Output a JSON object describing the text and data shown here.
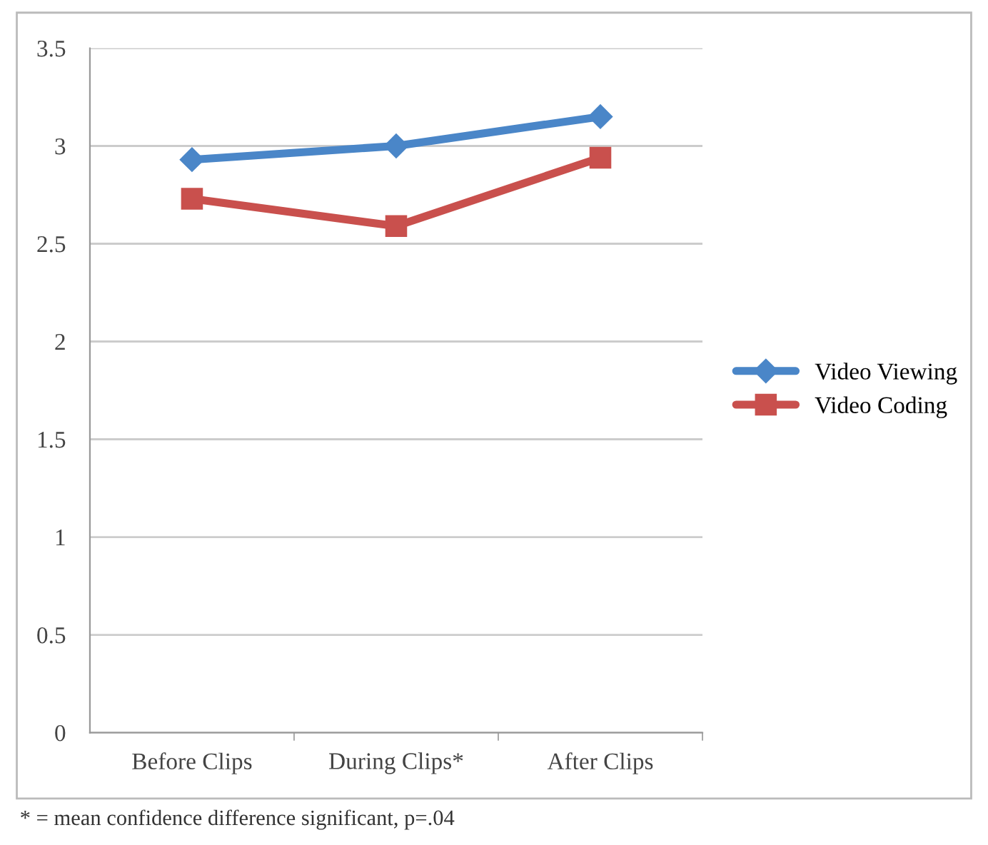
{
  "chart_data": {
    "type": "line",
    "categories": [
      "Before Clips",
      "During Clips*",
      "After Clips"
    ],
    "series": [
      {
        "name": "Video Viewing",
        "color": "#4a86c8",
        "values": [
          2.93,
          3.0,
          3.15
        ],
        "marker": "diamond"
      },
      {
        "name": "Video Coding",
        "color": "#c9504d",
        "values": [
          2.73,
          2.59,
          2.94
        ],
        "marker": "square"
      }
    ],
    "ylim": [
      0,
      3.5
    ],
    "yticks": [
      0,
      0.5,
      1,
      1.5,
      2,
      2.5,
      3,
      3.5
    ],
    "grid": "y",
    "legend": "right",
    "line_style": "solid",
    "annotations": [
      "* = mean confidence difference significant, p=.04"
    ]
  }
}
